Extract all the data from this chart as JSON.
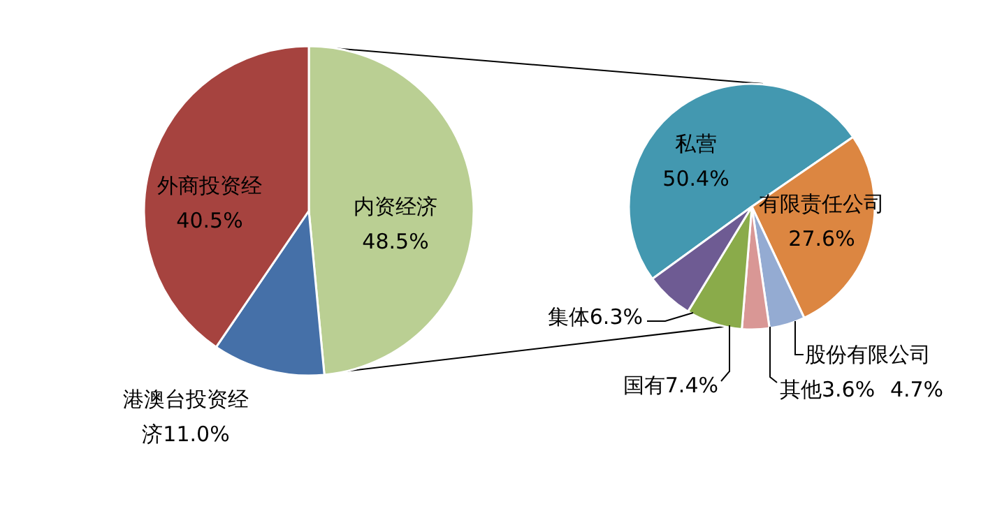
{
  "chart_data": [
    {
      "type": "pie",
      "categories": [
        "内资经济",
        "港澳台投资经济",
        "外商投资经"
      ],
      "values": [
        48.5,
        11.0,
        40.5
      ],
      "colors": [
        "#bacf93",
        "#4570a8",
        "#a6433f"
      ],
      "value_labels": [
        "48.5%",
        "11.0%",
        "40.5%"
      ]
    },
    {
      "type": "pie",
      "categories": [
        "私营",
        "有限责任公司",
        "股份有限公司",
        "其他",
        "国有",
        "集体"
      ],
      "values": [
        50.4,
        27.6,
        4.7,
        3.6,
        7.4,
        6.3
      ],
      "colors": [
        "#4398b0",
        "#dc8641",
        "#94abd2",
        "#d99795",
        "#8aab4a",
        "#6e5b93"
      ],
      "value_labels": [
        "50.4%",
        "27.6%",
        "4.7%",
        "3.6%",
        "7.4%",
        "6.3%"
      ]
    }
  ]
}
